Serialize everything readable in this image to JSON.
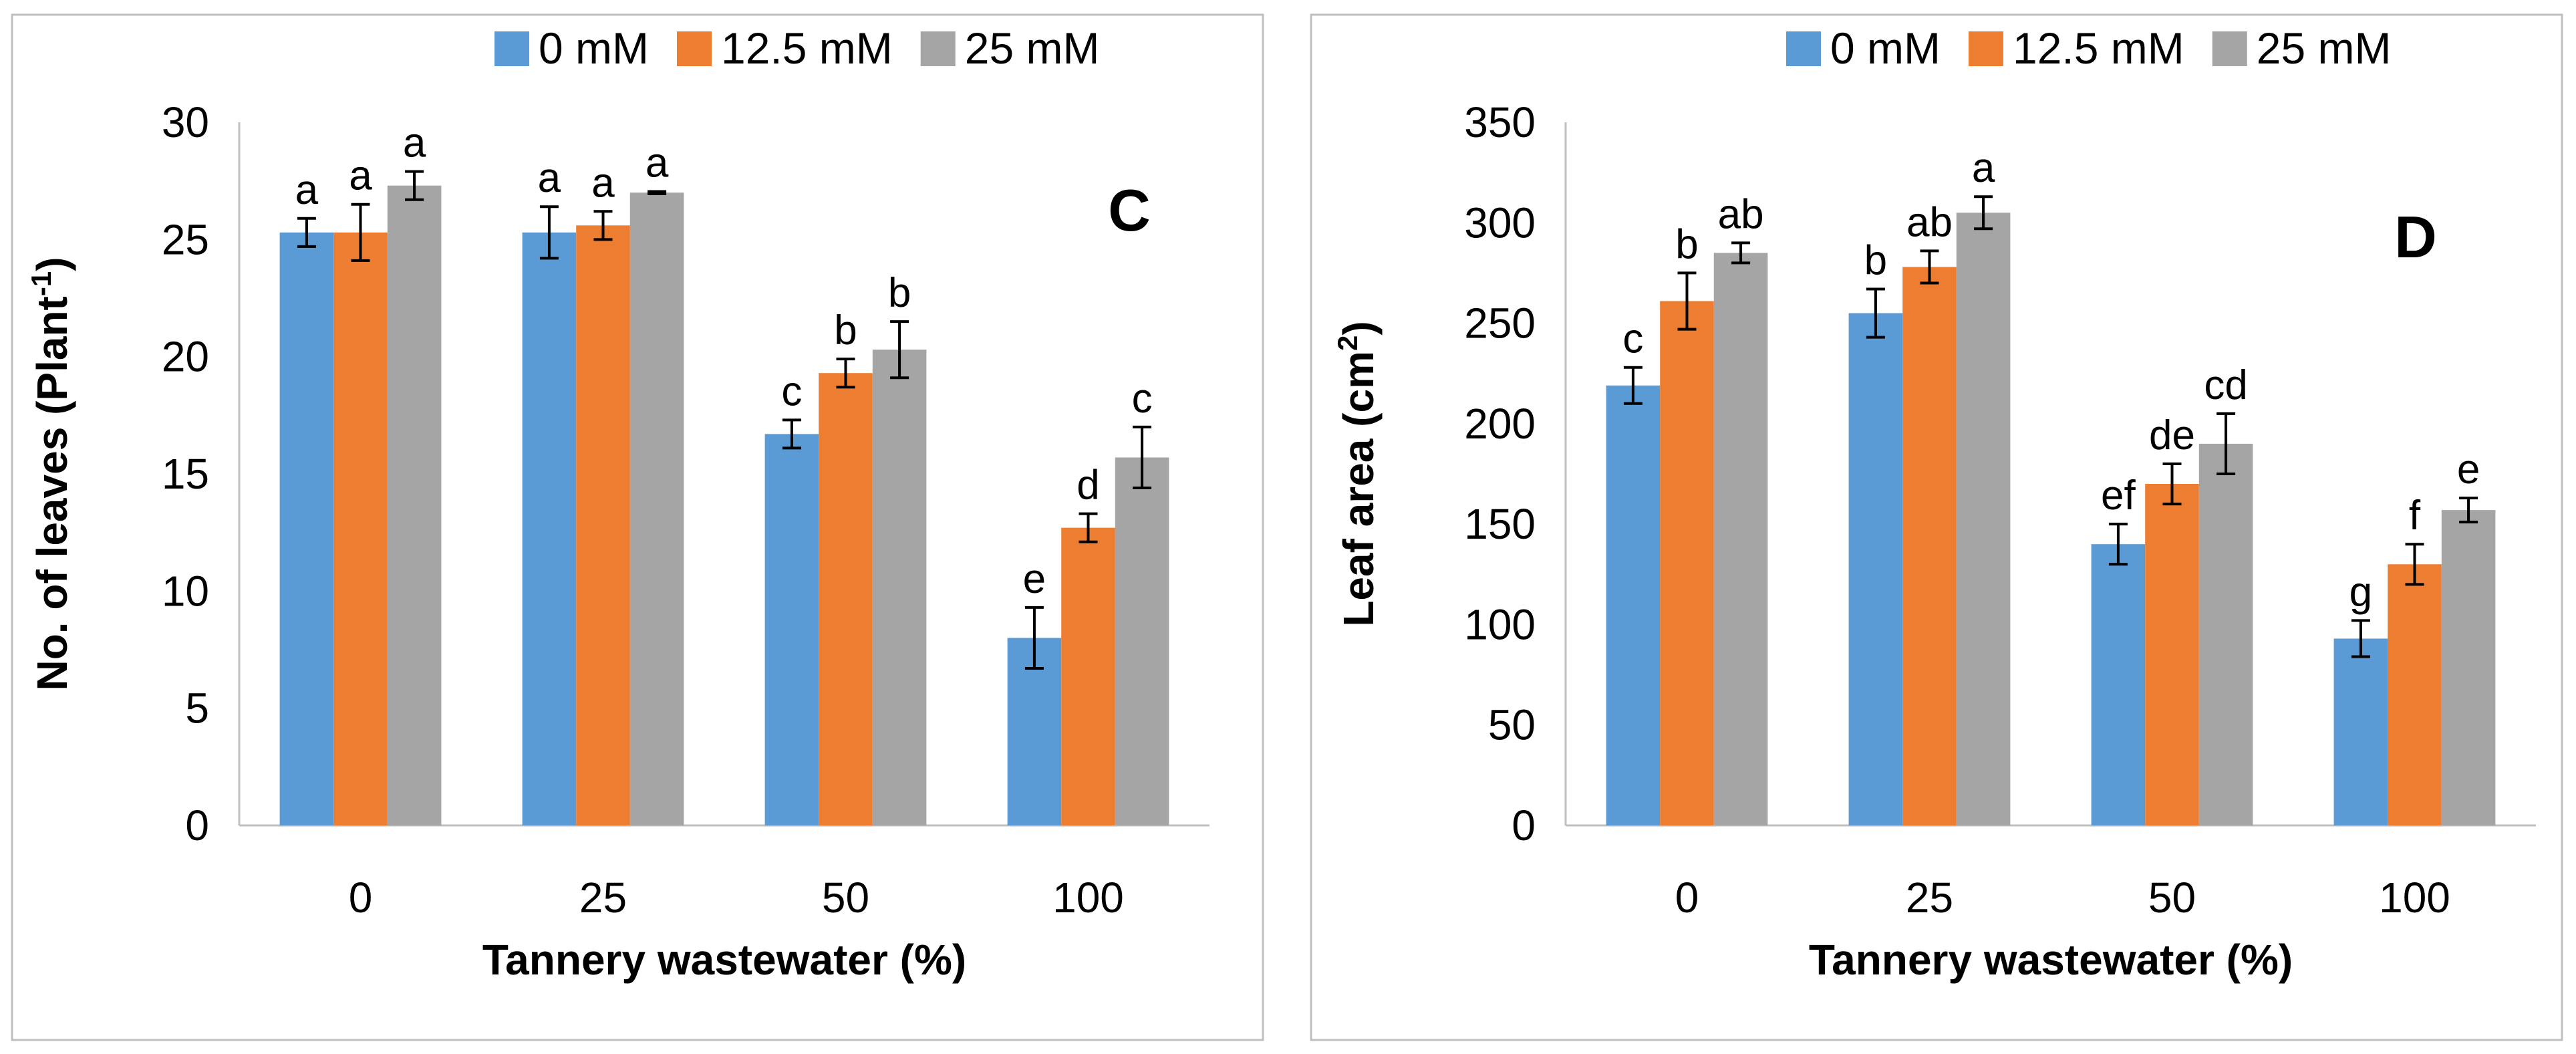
{
  "chart_data": [
    {
      "type": "bar",
      "panel_label": "C",
      "title": "",
      "xlabel": "Tannery wastewater (%)",
      "ylabel": "No. of leaves (Plant",
      "ylabel_sup": "-1",
      "ylabel_end": ")",
      "ylim": [
        0,
        30
      ],
      "yticks": [
        0,
        5,
        10,
        15,
        20,
        25,
        30
      ],
      "categories": [
        "0",
        "25",
        "50",
        "100"
      ],
      "legend_position": "top-right",
      "grid": false,
      "series": [
        {
          "name": "0 mM",
          "color": "#5B9BD5",
          "values": [
            25.3,
            25.3,
            16.7,
            8.0
          ],
          "errors": [
            0.6,
            1.1,
            0.6,
            1.3
          ],
          "letters": [
            "a",
            "a",
            "c",
            "e"
          ]
        },
        {
          "name": "12.5 mM",
          "color": "#ED7D31",
          "values": [
            25.3,
            25.6,
            19.3,
            12.7
          ],
          "errors": [
            1.2,
            0.6,
            0.6,
            0.6
          ],
          "letters": [
            "a",
            "a",
            "b",
            "d"
          ]
        },
        {
          "name": "25 mM",
          "color": "#A5A5A5",
          "values": [
            27.3,
            27.0,
            20.3,
            15.7
          ],
          "errors": [
            0.6,
            0.05,
            1.2,
            1.3
          ],
          "letters": [
            "a",
            "a",
            "b",
            "c"
          ]
        }
      ]
    },
    {
      "type": "bar",
      "panel_label": "D",
      "title": "",
      "xlabel": "Tannery wastewater (%)",
      "ylabel": "Leaf area (cm",
      "ylabel_sup": "2",
      "ylabel_end": ")",
      "ylim": [
        0,
        350
      ],
      "yticks": [
        0,
        50,
        100,
        150,
        200,
        250,
        300,
        350
      ],
      "categories": [
        "0",
        "25",
        "50",
        "100"
      ],
      "legend_position": "top-right",
      "grid": false,
      "series": [
        {
          "name": "0 mM",
          "color": "#5B9BD5",
          "values": [
            219,
            255,
            140,
            93
          ],
          "errors": [
            9,
            12,
            10,
            9
          ],
          "letters": [
            "c",
            "b",
            "ef",
            "g"
          ]
        },
        {
          "name": "12.5 mM",
          "color": "#ED7D31",
          "values": [
            261,
            278,
            170,
            130
          ],
          "errors": [
            14,
            8,
            10,
            10
          ],
          "letters": [
            "b",
            "ab",
            "de",
            "f"
          ]
        },
        {
          "name": "25 mM",
          "color": "#A5A5A5",
          "values": [
            285,
            305,
            190,
            157
          ],
          "errors": [
            5,
            8,
            15,
            6
          ],
          "letters": [
            "ab",
            "a",
            "cd",
            "e"
          ]
        }
      ]
    }
  ]
}
